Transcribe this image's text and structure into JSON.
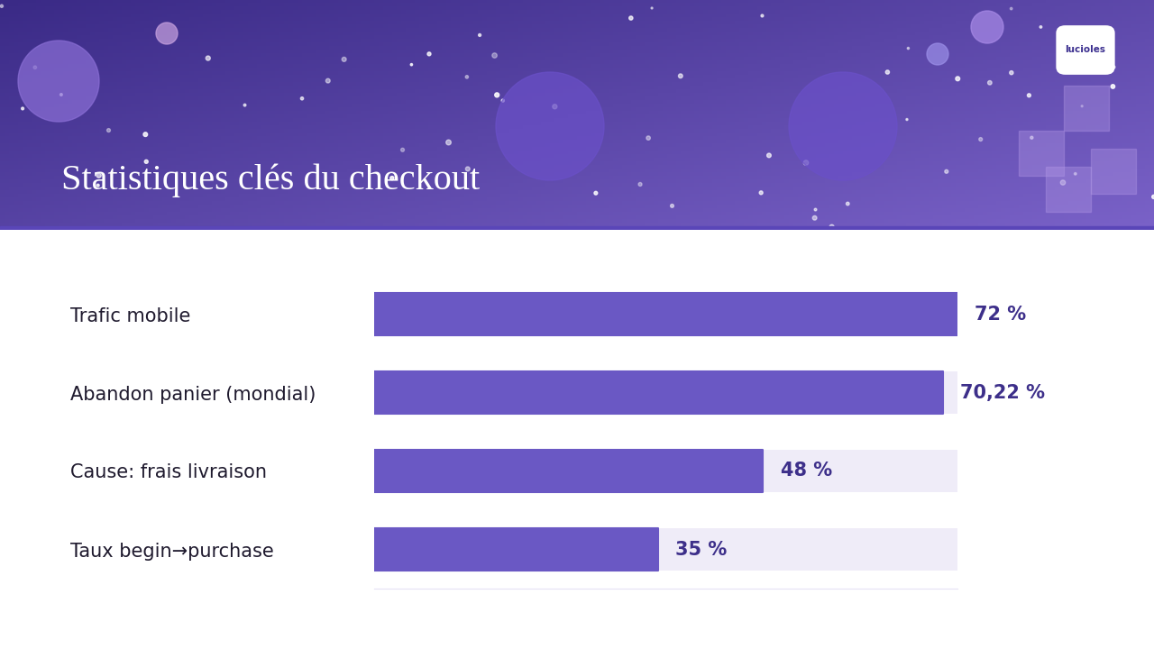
{
  "chart_data": {
    "type": "bar",
    "orientation": "horizontal",
    "title": "Statistiques clés du checkout",
    "annotations": [
      "lucioles"
    ],
    "categories": [
      "Trafic mobile",
      "Abandon panier (mondial)",
      "Cause: frais livraison",
      "Taux begin→purchase"
    ],
    "values": [
      72,
      70.22,
      48,
      35
    ],
    "value_labels": [
      "72 %",
      "70,22 %",
      "48 %",
      "35 %"
    ],
    "data_labels": true,
    "color": "#6a58c4",
    "xlim": [
      0,
      72
    ],
    "xticks": [],
    "tick_labels": "y",
    "grid": false
  }
}
